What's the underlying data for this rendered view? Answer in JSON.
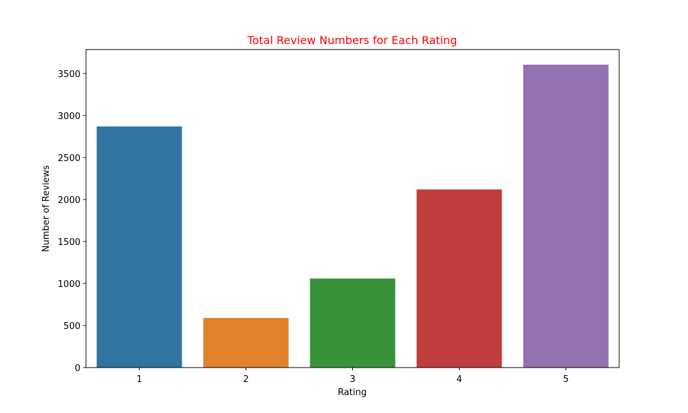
{
  "chart_data": {
    "type": "bar",
    "title": "Total Review Numbers for Each Rating",
    "title_color": "#ff0000",
    "xlabel": "Rating",
    "ylabel": "Number of Reviews",
    "categories": [
      "1",
      "2",
      "3",
      "4",
      "5"
    ],
    "values": [
      2870,
      590,
      1060,
      2120,
      3605
    ],
    "colors": [
      "#3274a1",
      "#e1812c",
      "#3a923a",
      "#c03d3e",
      "#9372b2"
    ],
    "ylim": [
      0,
      3785
    ],
    "yticks": [
      0,
      500,
      1000,
      1500,
      2000,
      2500,
      3000,
      3500
    ],
    "grid": false,
    "legend": "none"
  }
}
